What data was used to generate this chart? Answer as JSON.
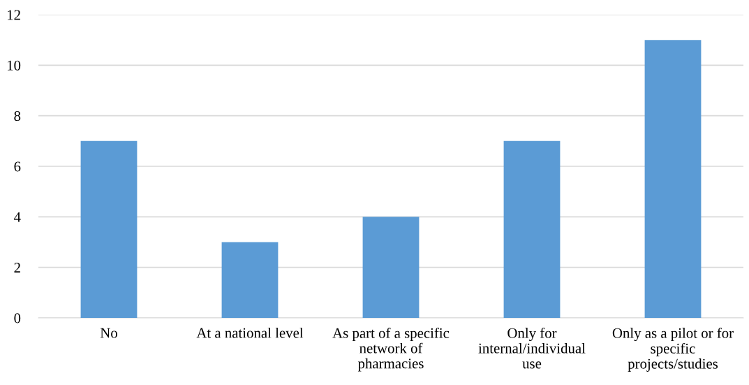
{
  "chart_data": {
    "type": "bar",
    "categories": [
      "No",
      "At a national level",
      "As part of a specific\nnetwork of\npharmacies",
      "Only for\ninternal/individual\nuse",
      "Only as a pilot or for\nspecific\nprojects/studies"
    ],
    "values": [
      7,
      3,
      4,
      7,
      11
    ],
    "color": "#5b9bd5",
    "ylim": [
      0,
      12
    ],
    "yticks": [
      0,
      2,
      4,
      6,
      8,
      10,
      12
    ],
    "grid": "y",
    "legend": false
  }
}
